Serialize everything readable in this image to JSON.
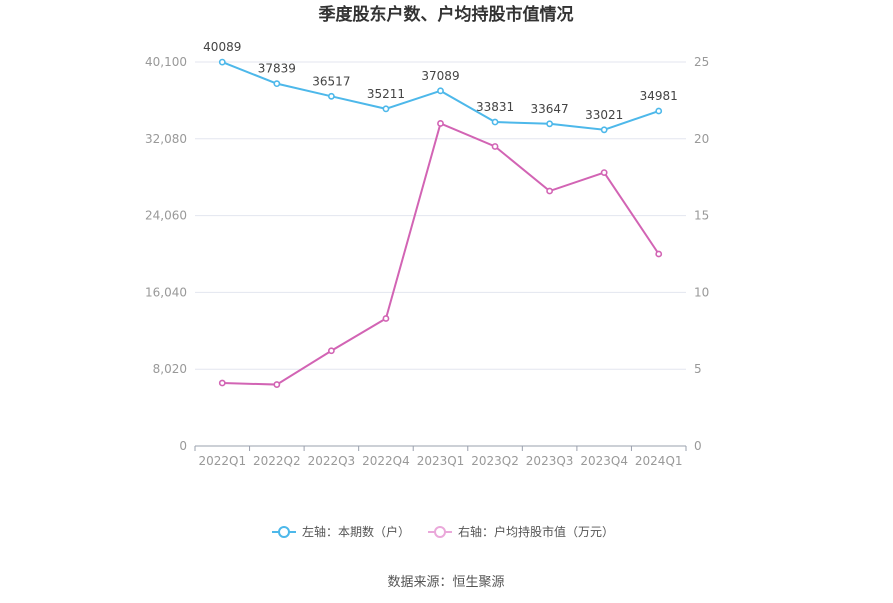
{
  "chart_data": {
    "type": "line",
    "title": "季度股东户数、户均持股市值情况",
    "categories": [
      "2022Q1",
      "2022Q2",
      "2022Q3",
      "2022Q4",
      "2023Q1",
      "2023Q2",
      "2023Q3",
      "2023Q4",
      "2024Q1"
    ],
    "left_axis": {
      "ticks": [
        "0",
        "8,020",
        "16,040",
        "24,060",
        "32,080",
        "40,100"
      ],
      "ylim": [
        0,
        40100
      ]
    },
    "right_axis": {
      "ticks": [
        "0",
        "5",
        "10",
        "15",
        "20",
        "25"
      ],
      "ylim": [
        0,
        25
      ]
    },
    "series": [
      {
        "name": "左轴：本期数（户）",
        "axis": "left",
        "color": "#4db8ea",
        "values": [
          40089,
          37839,
          36517,
          35211,
          37089,
          33831,
          33647,
          33021,
          34981
        ],
        "labels": [
          "40089",
          "37839",
          "36517",
          "35211",
          "37089",
          "33831",
          "33647",
          "33021",
          "34981"
        ]
      },
      {
        "name": "右轴：户均持股市值（万元）",
        "axis": "right",
        "color": "#d264b4",
        "values": [
          4.1,
          4.0,
          6.2,
          8.3,
          21.0,
          19.5,
          16.6,
          17.8,
          12.5
        ]
      }
    ],
    "grid": true,
    "legend_position": "bottom"
  },
  "source": "数据来源：恒生聚源"
}
